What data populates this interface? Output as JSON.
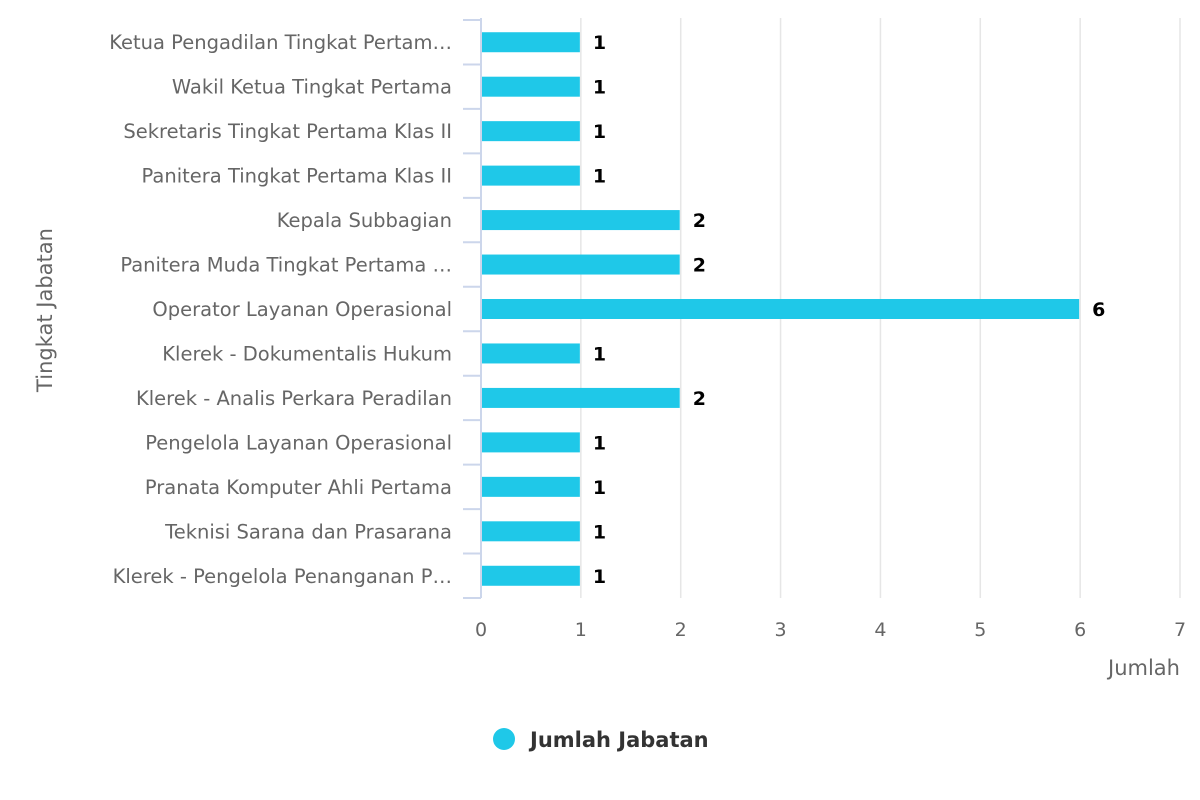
{
  "chart_data": {
    "type": "bar",
    "orientation": "horizontal",
    "categories": [
      "Ketua Pengadilan Tingkat Pertam…",
      "Wakil Ketua Tingkat Pertama",
      "Sekretaris Tingkat Pertama Klas II",
      "Panitera Tingkat Pertama Klas II",
      "Kepala Subbagian",
      "Panitera Muda Tingkat Pertama …",
      "Operator Layanan Operasional",
      "Klerek - Dokumentalis Hukum",
      "Klerek - Analis Perkara Peradilan",
      "Pengelola Layanan Operasional",
      "Pranata Komputer Ahli Pertama",
      "Teknisi Sarana dan Prasarana",
      "Klerek - Pengelola Penanganan P…"
    ],
    "series": [
      {
        "name": "Jumlah Jabatan",
        "values": [
          1,
          1,
          1,
          1,
          2,
          2,
          6,
          1,
          2,
          1,
          1,
          1,
          1
        ],
        "color": "#1fc8e8"
      }
    ],
    "xlabel": "Jumlah",
    "ylabel": "Tingkat Jabatan",
    "xlim": [
      0,
      7
    ],
    "xticks": [
      "0",
      "1",
      "2",
      "3",
      "4",
      "5",
      "6",
      "7"
    ],
    "grid": true,
    "data_labels": true,
    "legend_position": "bottom-center"
  }
}
